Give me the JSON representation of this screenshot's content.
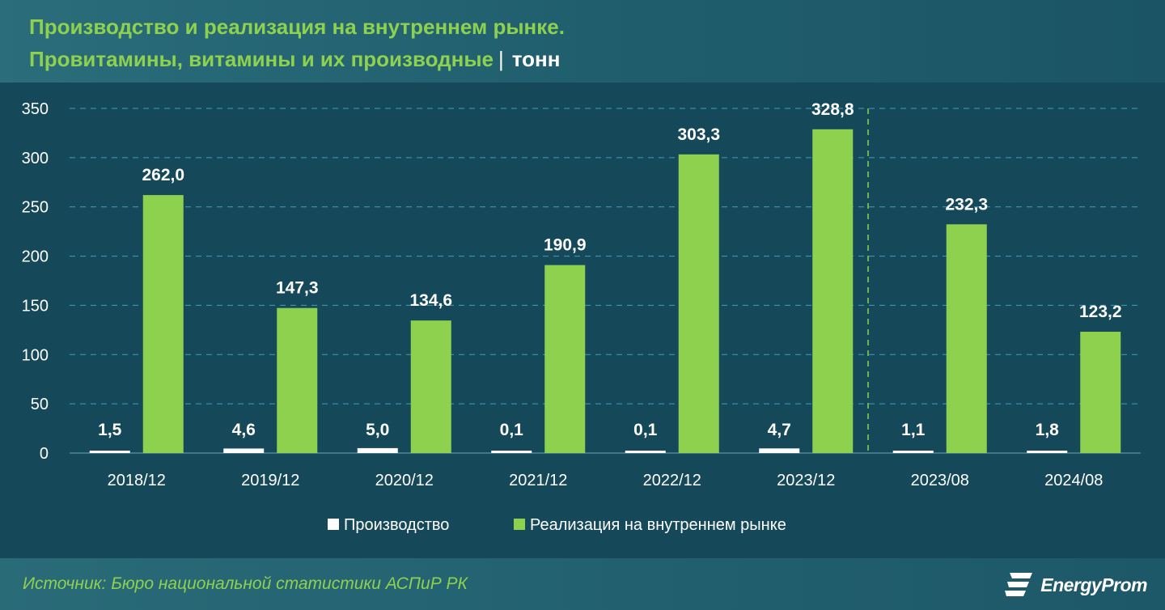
{
  "header": {
    "title_line1": "Производство и реализация на внутреннем рынке.",
    "title_line2": "Провитамины, витамины и их производные",
    "separator": "|",
    "unit": "тонн"
  },
  "footer": {
    "source": "Источник: Бюро национальной статистики АСПиР РК",
    "logo_text": "EnergyProm"
  },
  "colors": {
    "production": "#ffffff",
    "sales": "#8ed14f",
    "title": "#8ed14f",
    "background": "#15495a"
  },
  "chart_data": {
    "type": "bar",
    "title": "Производство и реализация на внутреннем рынке. Провитамины, витамины и их производные",
    "ylabel": "тонн",
    "xlabel": "",
    "ylim": [
      0,
      350
    ],
    "yticks": [
      0,
      50,
      100,
      150,
      200,
      250,
      300,
      350
    ],
    "grid": true,
    "legend_position": "bottom",
    "categories": [
      "2018/12",
      "2019/12",
      "2020/12",
      "2021/12",
      "2022/12",
      "2023/12",
      "2023/08",
      "2024/08"
    ],
    "series": [
      {
        "name": "Производство",
        "values": [
          1.5,
          4.6,
          5.0,
          0.1,
          0.1,
          4.7,
          1.1,
          1.8
        ],
        "labels": [
          "1,5",
          "4,6",
          "5,0",
          "0,1",
          "0,1",
          "4,7",
          "1,1",
          "1,8"
        ]
      },
      {
        "name": "Реализация на внутреннем рынке",
        "values": [
          262.0,
          147.3,
          134.6,
          190.9,
          303.3,
          328.8,
          232.3,
          123.2
        ],
        "labels": [
          "262,0",
          "147,3",
          "134,6",
          "190,9",
          "303,3",
          "328,8",
          "232,3",
          "123,2"
        ]
      }
    ],
    "separator_after_category": "2023/12"
  }
}
